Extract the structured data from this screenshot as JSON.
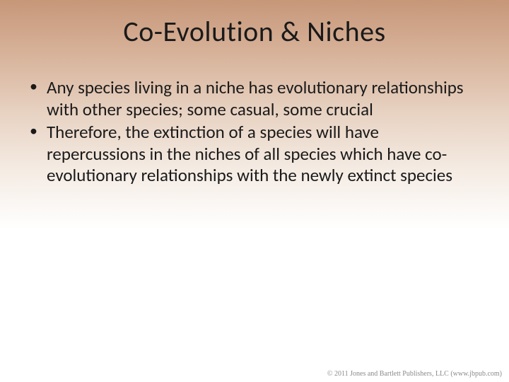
{
  "slide": {
    "title": "Co-Evolution & Niches",
    "bullets": [
      "Any species living in a niche has evolutionary relationships with other species; some casual, some crucial",
      "Therefore, the extinction of a species will have repercussions in the niches of all species which have co-evolutionary relationships with the newly extinct species"
    ],
    "footer": "© 2011 Jones and Bartlett Publishers, LLC (www.jbpub.com)"
  },
  "style": {
    "background_gradient": [
      "#c79779",
      "#d8b49c",
      "#e8d3c3",
      "#f5ece4",
      "#ffffff"
    ],
    "title_fontsize": 40,
    "body_fontsize": 25,
    "title_color": "#1a1a1a",
    "body_color": "#1a1a1a",
    "footer_color": "#8a8a8a",
    "footer_fontsize": 10,
    "font_family": "Calibri"
  }
}
